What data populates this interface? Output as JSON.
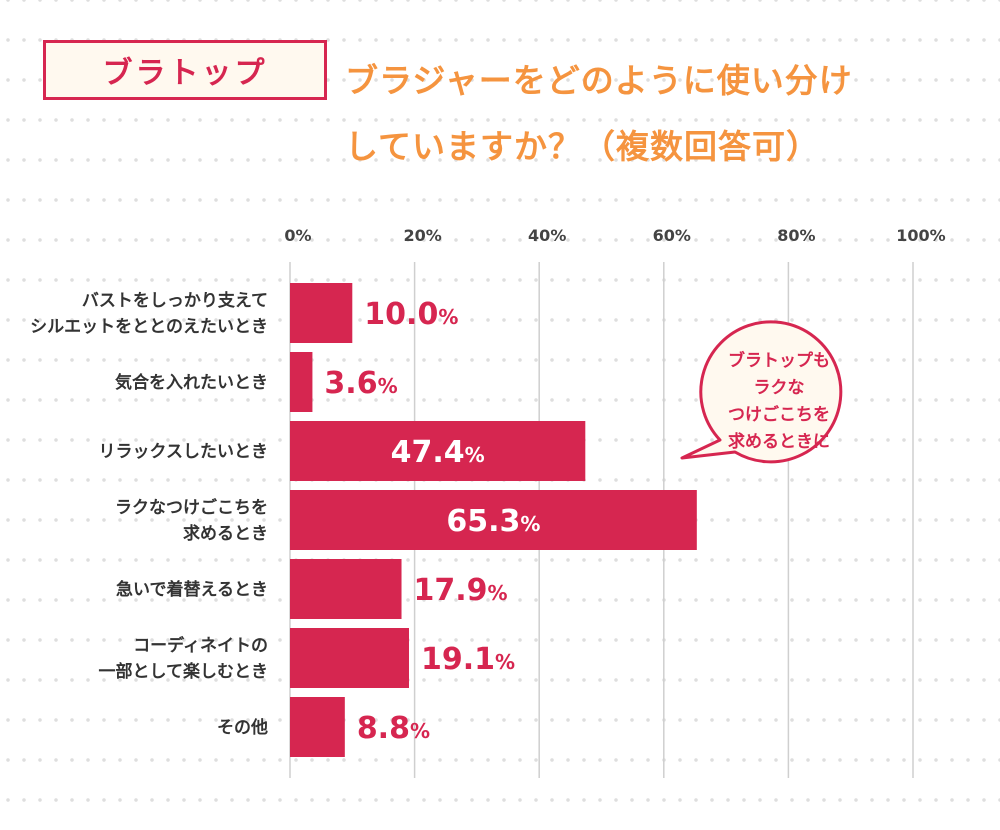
{
  "header": {
    "tag": "ブラトップ",
    "title_line1": "ブラジャーをどのように使い分け",
    "title_line2": "していますか？（複数回答可）"
  },
  "callout": {
    "lines": [
      "ブラトップも",
      "ラクな",
      "つけごこちを",
      "求めるときに"
    ]
  },
  "colors": {
    "bar": "#d62650",
    "title": "#f5943f",
    "accent": "#d62650"
  },
  "chart_data": {
    "type": "bar",
    "orientation": "horizontal",
    "categories": [
      [
        "バストをしっかり支えて",
        "シルエットをととのえたいとき"
      ],
      [
        "気合を入れたいとき"
      ],
      [
        "リラックスしたいとき"
      ],
      [
        "ラクなつけごこちを",
        "求めるとき"
      ],
      [
        "急いで着替えるとき"
      ],
      [
        "コーディネイトの",
        "一部として楽しむとき"
      ],
      [
        "その他"
      ]
    ],
    "values": [
      10.0,
      3.6,
      47.4,
      65.3,
      17.9,
      19.1,
      8.8
    ],
    "value_labels": [
      "10.0",
      "3.6",
      "47.4",
      "65.3",
      "17.9",
      "19.1",
      "8.8"
    ],
    "unit": "%",
    "xlim": [
      0,
      100
    ],
    "ticks": [
      "0%",
      "20%",
      "40%",
      "60%",
      "80%",
      "100%"
    ],
    "grid": true
  }
}
